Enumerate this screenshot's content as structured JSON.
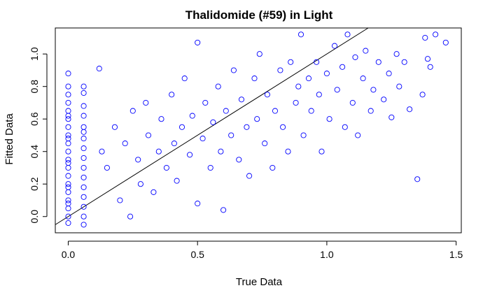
{
  "chart_data": {
    "type": "scatter",
    "title": "Thalidomide (#59) in Light",
    "xlabel": "True Data",
    "ylabel": "Fitted Data",
    "xlim": [
      -0.05,
      1.52
    ],
    "ylim": [
      -0.1,
      1.16
    ],
    "x_ticks": [
      0.0,
      0.5,
      1.0,
      1.5
    ],
    "x_tick_labels": [
      "0.0",
      "0.5",
      "1.0",
      "1.5"
    ],
    "y_ticks": [
      0.0,
      0.2,
      0.4,
      0.6,
      0.8,
      1.0
    ],
    "y_tick_labels": [
      "0.0",
      "0.2",
      "0.4",
      "0.6",
      "0.8",
      "1.0"
    ],
    "reference_line": {
      "slope": 1,
      "intercept": 0
    },
    "marker": "open-circle",
    "color": "#0000ff",
    "grid": false,
    "legend": "none",
    "points": [
      [
        0.0,
        0.88
      ],
      [
        0.0,
        0.8
      ],
      [
        0.0,
        0.75
      ],
      [
        0.0,
        0.7
      ],
      [
        0.0,
        0.65
      ],
      [
        0.0,
        0.6
      ],
      [
        0.0,
        0.55
      ],
      [
        0.0,
        0.5
      ],
      [
        0.0,
        0.45
      ],
      [
        0.0,
        0.4
      ],
      [
        0.0,
        0.35
      ],
      [
        0.0,
        0.3
      ],
      [
        0.0,
        0.25
      ],
      [
        0.0,
        0.2
      ],
      [
        0.0,
        0.15
      ],
      [
        0.0,
        0.1
      ],
      [
        0.0,
        0.05
      ],
      [
        0.0,
        0.0
      ],
      [
        0.0,
        -0.04
      ],
      [
        0.0,
        0.62
      ],
      [
        0.0,
        0.48
      ],
      [
        0.0,
        0.33
      ],
      [
        0.0,
        0.18
      ],
      [
        0.0,
        0.08
      ],
      [
        0.06,
        0.8
      ],
      [
        0.06,
        0.76
      ],
      [
        0.06,
        0.68
      ],
      [
        0.06,
        0.62
      ],
      [
        0.06,
        0.55
      ],
      [
        0.06,
        0.48
      ],
      [
        0.06,
        0.42
      ],
      [
        0.06,
        0.36
      ],
      [
        0.06,
        0.3
      ],
      [
        0.06,
        0.24
      ],
      [
        0.06,
        0.18
      ],
      [
        0.06,
        0.12
      ],
      [
        0.06,
        0.06
      ],
      [
        0.06,
        0.0
      ],
      [
        0.06,
        -0.05
      ],
      [
        0.06,
        0.52
      ],
      [
        0.12,
        0.91
      ],
      [
        0.13,
        0.4
      ],
      [
        0.15,
        0.3
      ],
      [
        0.18,
        0.55
      ],
      [
        0.2,
        0.1
      ],
      [
        0.22,
        0.45
      ],
      [
        0.24,
        0.0
      ],
      [
        0.25,
        0.65
      ],
      [
        0.27,
        0.35
      ],
      [
        0.28,
        0.2
      ],
      [
        0.3,
        0.7
      ],
      [
        0.31,
        0.5
      ],
      [
        0.33,
        0.15
      ],
      [
        0.35,
        0.4
      ],
      [
        0.36,
        0.6
      ],
      [
        0.38,
        0.3
      ],
      [
        0.4,
        0.75
      ],
      [
        0.41,
        0.45
      ],
      [
        0.42,
        0.22
      ],
      [
        0.44,
        0.55
      ],
      [
        0.45,
        0.85
      ],
      [
        0.47,
        0.38
      ],
      [
        0.48,
        0.62
      ],
      [
        0.5,
        1.07
      ],
      [
        0.5,
        0.08
      ],
      [
        0.52,
        0.48
      ],
      [
        0.53,
        0.7
      ],
      [
        0.55,
        0.3
      ],
      [
        0.56,
        0.58
      ],
      [
        0.58,
        0.8
      ],
      [
        0.59,
        0.4
      ],
      [
        0.6,
        0.04
      ],
      [
        0.61,
        0.65
      ],
      [
        0.63,
        0.5
      ],
      [
        0.64,
        0.9
      ],
      [
        0.66,
        0.35
      ],
      [
        0.67,
        0.72
      ],
      [
        0.69,
        0.55
      ],
      [
        0.7,
        0.25
      ],
      [
        0.72,
        0.85
      ],
      [
        0.73,
        0.6
      ],
      [
        0.74,
        1.0
      ],
      [
        0.76,
        0.45
      ],
      [
        0.77,
        0.75
      ],
      [
        0.79,
        0.3
      ],
      [
        0.8,
        0.65
      ],
      [
        0.82,
        0.9
      ],
      [
        0.83,
        0.55
      ],
      [
        0.85,
        0.4
      ],
      [
        0.86,
        0.95
      ],
      [
        0.88,
        0.7
      ],
      [
        0.89,
        0.8
      ],
      [
        0.9,
        1.12
      ],
      [
        0.91,
        0.5
      ],
      [
        0.93,
        0.85
      ],
      [
        0.94,
        0.65
      ],
      [
        0.96,
        0.95
      ],
      [
        0.97,
        0.75
      ],
      [
        0.98,
        0.4
      ],
      [
        1.0,
        0.88
      ],
      [
        1.01,
        0.6
      ],
      [
        1.03,
        1.05
      ],
      [
        1.04,
        0.78
      ],
      [
        1.06,
        0.92
      ],
      [
        1.07,
        0.55
      ],
      [
        1.08,
        1.12
      ],
      [
        1.1,
        0.7
      ],
      [
        1.11,
        0.98
      ],
      [
        1.12,
        0.5
      ],
      [
        1.14,
        0.85
      ],
      [
        1.15,
        1.02
      ],
      [
        1.17,
        0.65
      ],
      [
        1.18,
        0.78
      ],
      [
        1.2,
        0.95
      ],
      [
        1.22,
        0.72
      ],
      [
        1.24,
        0.88
      ],
      [
        1.25,
        0.61
      ],
      [
        1.27,
        1.0
      ],
      [
        1.28,
        0.8
      ],
      [
        1.3,
        0.95
      ],
      [
        1.32,
        0.66
      ],
      [
        1.35,
        0.23
      ],
      [
        1.37,
        0.75
      ],
      [
        1.38,
        1.1
      ],
      [
        1.4,
        0.92
      ],
      [
        1.42,
        1.12
      ],
      [
        1.46,
        1.07
      ],
      [
        1.39,
        0.97
      ]
    ]
  }
}
